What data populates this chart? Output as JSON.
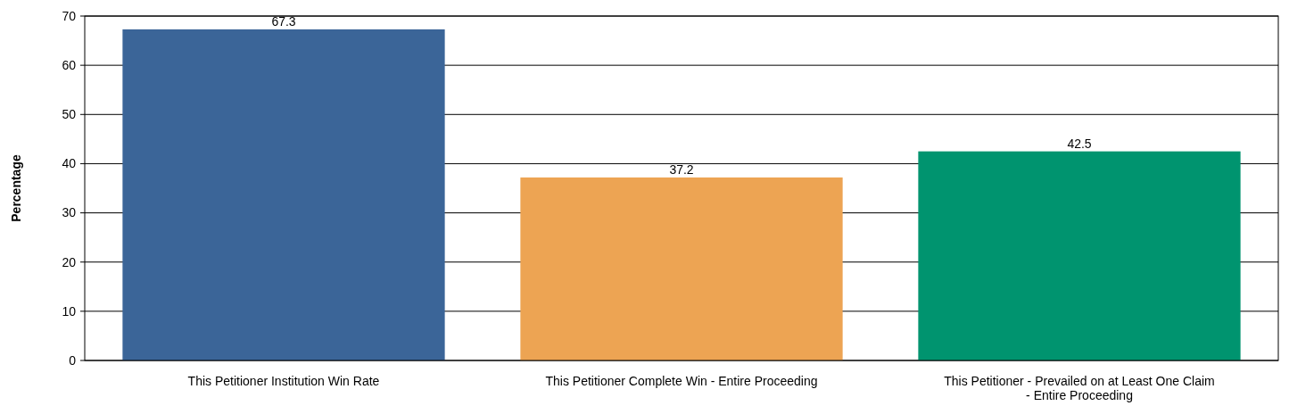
{
  "chart_data": {
    "type": "bar",
    "ylabel": "Percentage",
    "categories": [
      "This Petitioner Institution Win Rate",
      "This Petitioner Complete Win - Entire Proceeding",
      "This Petitioner - Prevailed on at Least One Claim - Entire Proceeding"
    ],
    "values": [
      67.3,
      37.2,
      42.5
    ],
    "colors": [
      "#3b6598",
      "#eda453",
      "#00946f"
    ],
    "ylim": [
      0,
      70
    ],
    "yticks": [
      0,
      10,
      20,
      30,
      40,
      50,
      60,
      70
    ],
    "grid": "y",
    "data_labels": true
  }
}
